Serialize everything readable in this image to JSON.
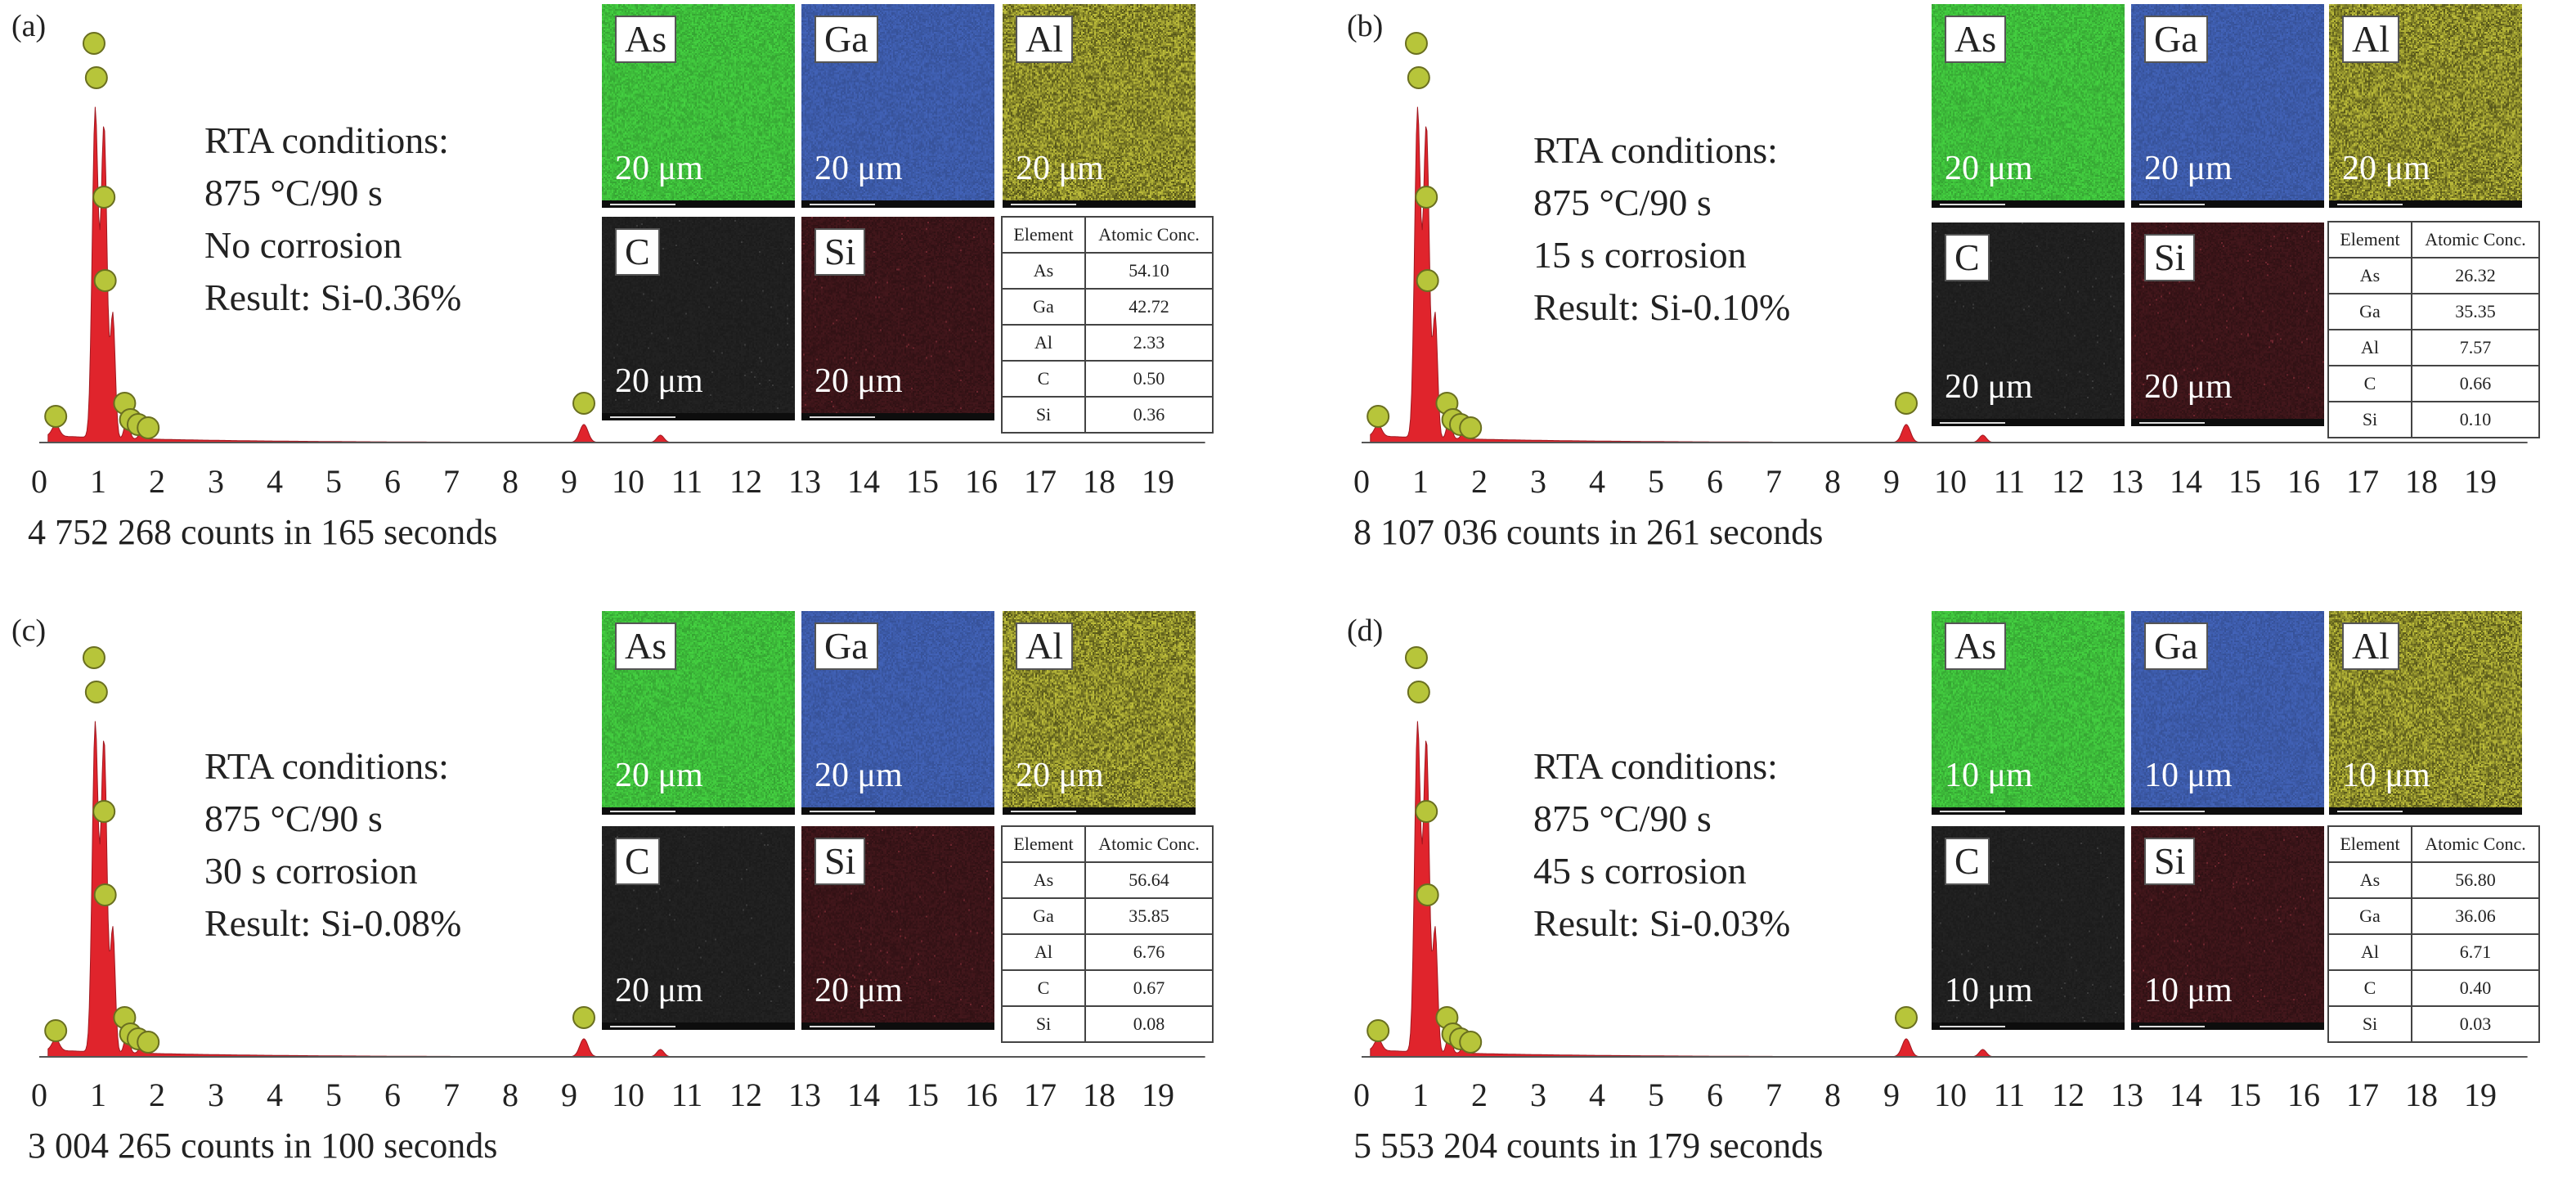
{
  "axis_ticks": [
    "0",
    "1",
    "2",
    "3",
    "4",
    "5",
    "6",
    "7",
    "8",
    "9",
    "10",
    "11",
    "12",
    "13",
    "14",
    "15",
    "16",
    "17",
    "18",
    "19"
  ],
  "colors": {
    "spectrum_fill": "#e0242c",
    "peak_marker": "#b7c53a",
    "as_map": "#3dbb3a",
    "ga_map": "#3c5aa8",
    "al_map": "#8a8a2a",
    "c_map": "#1f1f1f",
    "si_map": "#3a1418"
  },
  "panels": [
    {
      "label": "(a)",
      "rta_title": "RTA conditions:",
      "rta_temp": "875 °C/90 s",
      "rta_corrosion": "No corrosion",
      "rta_result": "Result: Si-0.36%",
      "counts": "4 752 268 counts in 165 seconds",
      "maps": [
        {
          "element": "As",
          "scale": "20 μm"
        },
        {
          "element": "Ga",
          "scale": "20 μm"
        },
        {
          "element": "Al",
          "scale": "20 μm"
        },
        {
          "element": "C",
          "scale": "20 μm"
        },
        {
          "element": "Si",
          "scale": "20 μm"
        }
      ],
      "table_header": [
        "Element",
        "Atomic Conc."
      ],
      "table_rows": [
        [
          "As",
          "54.10"
        ],
        [
          "Ga",
          "42.72"
        ],
        [
          "Al",
          "2.33"
        ],
        [
          "C",
          "0.50"
        ],
        [
          "Si",
          "0.36"
        ]
      ]
    },
    {
      "label": "(b)",
      "rta_title": "RTA conditions:",
      "rta_temp": "875 °C/90 s",
      "rta_corrosion": "15 s corrosion",
      "rta_result": "Result: Si-0.10%",
      "counts": "8 107 036 counts in 261 seconds",
      "maps": [
        {
          "element": "As",
          "scale": "20 μm"
        },
        {
          "element": "Ga",
          "scale": "20 μm"
        },
        {
          "element": "Al",
          "scale": "20 μm"
        },
        {
          "element": "C",
          "scale": "20 μm"
        },
        {
          "element": "Si",
          "scale": "20 μm"
        }
      ],
      "table_header": [
        "Element",
        "Atomic Conc."
      ],
      "table_rows": [
        [
          "As",
          "26.32"
        ],
        [
          "Ga",
          "35.35"
        ],
        [
          "Al",
          "7.57"
        ],
        [
          "C",
          "0.66"
        ],
        [
          "Si",
          "0.10"
        ]
      ]
    },
    {
      "label": "(c)",
      "rta_title": "RTA conditions:",
      "rta_temp": "875 °C/90 s",
      "rta_corrosion": "30 s corrosion",
      "rta_result": "Result: Si-0.08%",
      "counts": "3 004 265 counts in 100 seconds",
      "maps": [
        {
          "element": "As",
          "scale": "20 μm"
        },
        {
          "element": "Ga",
          "scale": "20 μm"
        },
        {
          "element": "Al",
          "scale": "20 μm"
        },
        {
          "element": "C",
          "scale": "20 μm"
        },
        {
          "element": "Si",
          "scale": "20 μm"
        }
      ],
      "table_header": [
        "Element",
        "Atomic Conc."
      ],
      "table_rows": [
        [
          "As",
          "56.64"
        ],
        [
          "Ga",
          "35.85"
        ],
        [
          "Al",
          "6.76"
        ],
        [
          "C",
          "0.67"
        ],
        [
          "Si",
          "0.08"
        ]
      ]
    },
    {
      "label": "(d)",
      "rta_title": "RTA conditions:",
      "rta_temp": "875 °C/90 s",
      "rta_corrosion": "45 s corrosion",
      "rta_result": "Result: Si-0.03%",
      "counts": "5 553 204 counts in 179 seconds",
      "maps": [
        {
          "element": "As",
          "scale": "10 μm"
        },
        {
          "element": "Ga",
          "scale": "10 μm"
        },
        {
          "element": "Al",
          "scale": "10 μm"
        },
        {
          "element": "C",
          "scale": "10 μm"
        },
        {
          "element": "Si",
          "scale": "10 μm"
        }
      ],
      "table_header": [
        "Element",
        "Atomic Conc."
      ],
      "table_rows": [
        [
          "As",
          "56.80"
        ],
        [
          "Ga",
          "36.06"
        ],
        [
          "Al",
          "6.71"
        ],
        [
          "C",
          "0.40"
        ],
        [
          "Si",
          "0.03"
        ]
      ]
    }
  ]
}
